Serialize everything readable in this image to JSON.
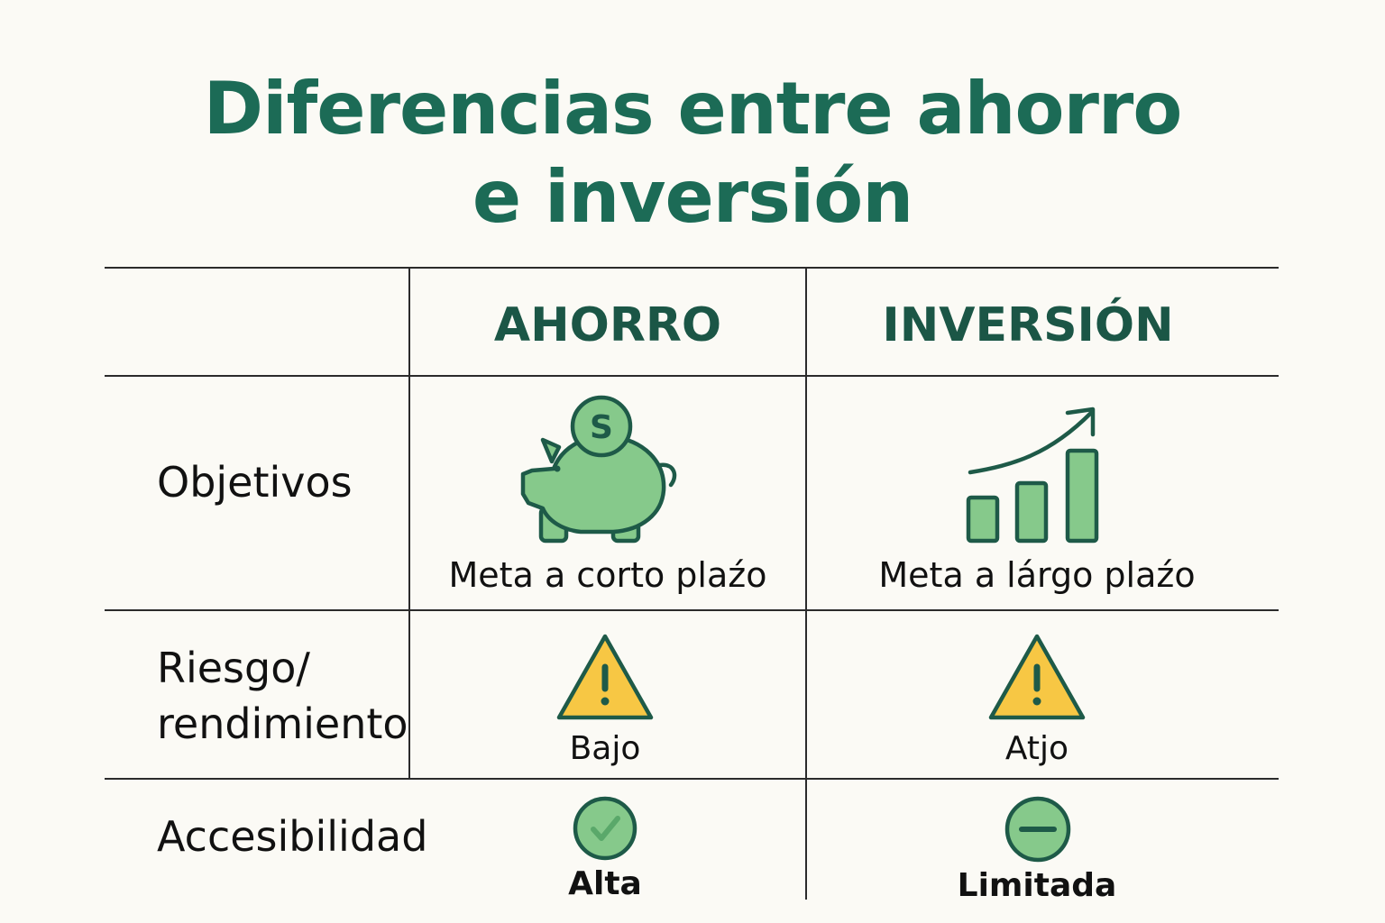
{
  "title": {
    "line1": "Diferencias entre ahorro",
    "line2": "e inversión"
  },
  "columns": {
    "savings": "AHORRO",
    "investment": "INVERSIÓN"
  },
  "rows": {
    "objectives": {
      "label": "Objetivos",
      "savings": {
        "icon": "piggy-bank-icon",
        "text": "Meta a corto plaźo"
      },
      "investment": {
        "icon": "growth-chart-icon",
        "text": "Meta a lárgo plaźo"
      }
    },
    "risk": {
      "label_line1": "Riesgo/",
      "label_line2": "rendimiento",
      "savings": {
        "icon": "warning-icon",
        "text": "Bajo"
      },
      "investment": {
        "icon": "warning-icon",
        "text": "Atjo"
      }
    },
    "access": {
      "label": "Accesibilidad",
      "savings": {
        "icon": "check-circle-icon",
        "text": "Alta"
      },
      "investment": {
        "icon": "minus-circle-icon",
        "text": "Limitada"
      }
    }
  },
  "colors": {
    "title": "#1c6b56",
    "header": "#1b5646",
    "icon_fill": "#86c98b",
    "icon_stroke": "#1e5a48",
    "warning_fill": "#f7c744",
    "background": "#fbfaf5"
  }
}
